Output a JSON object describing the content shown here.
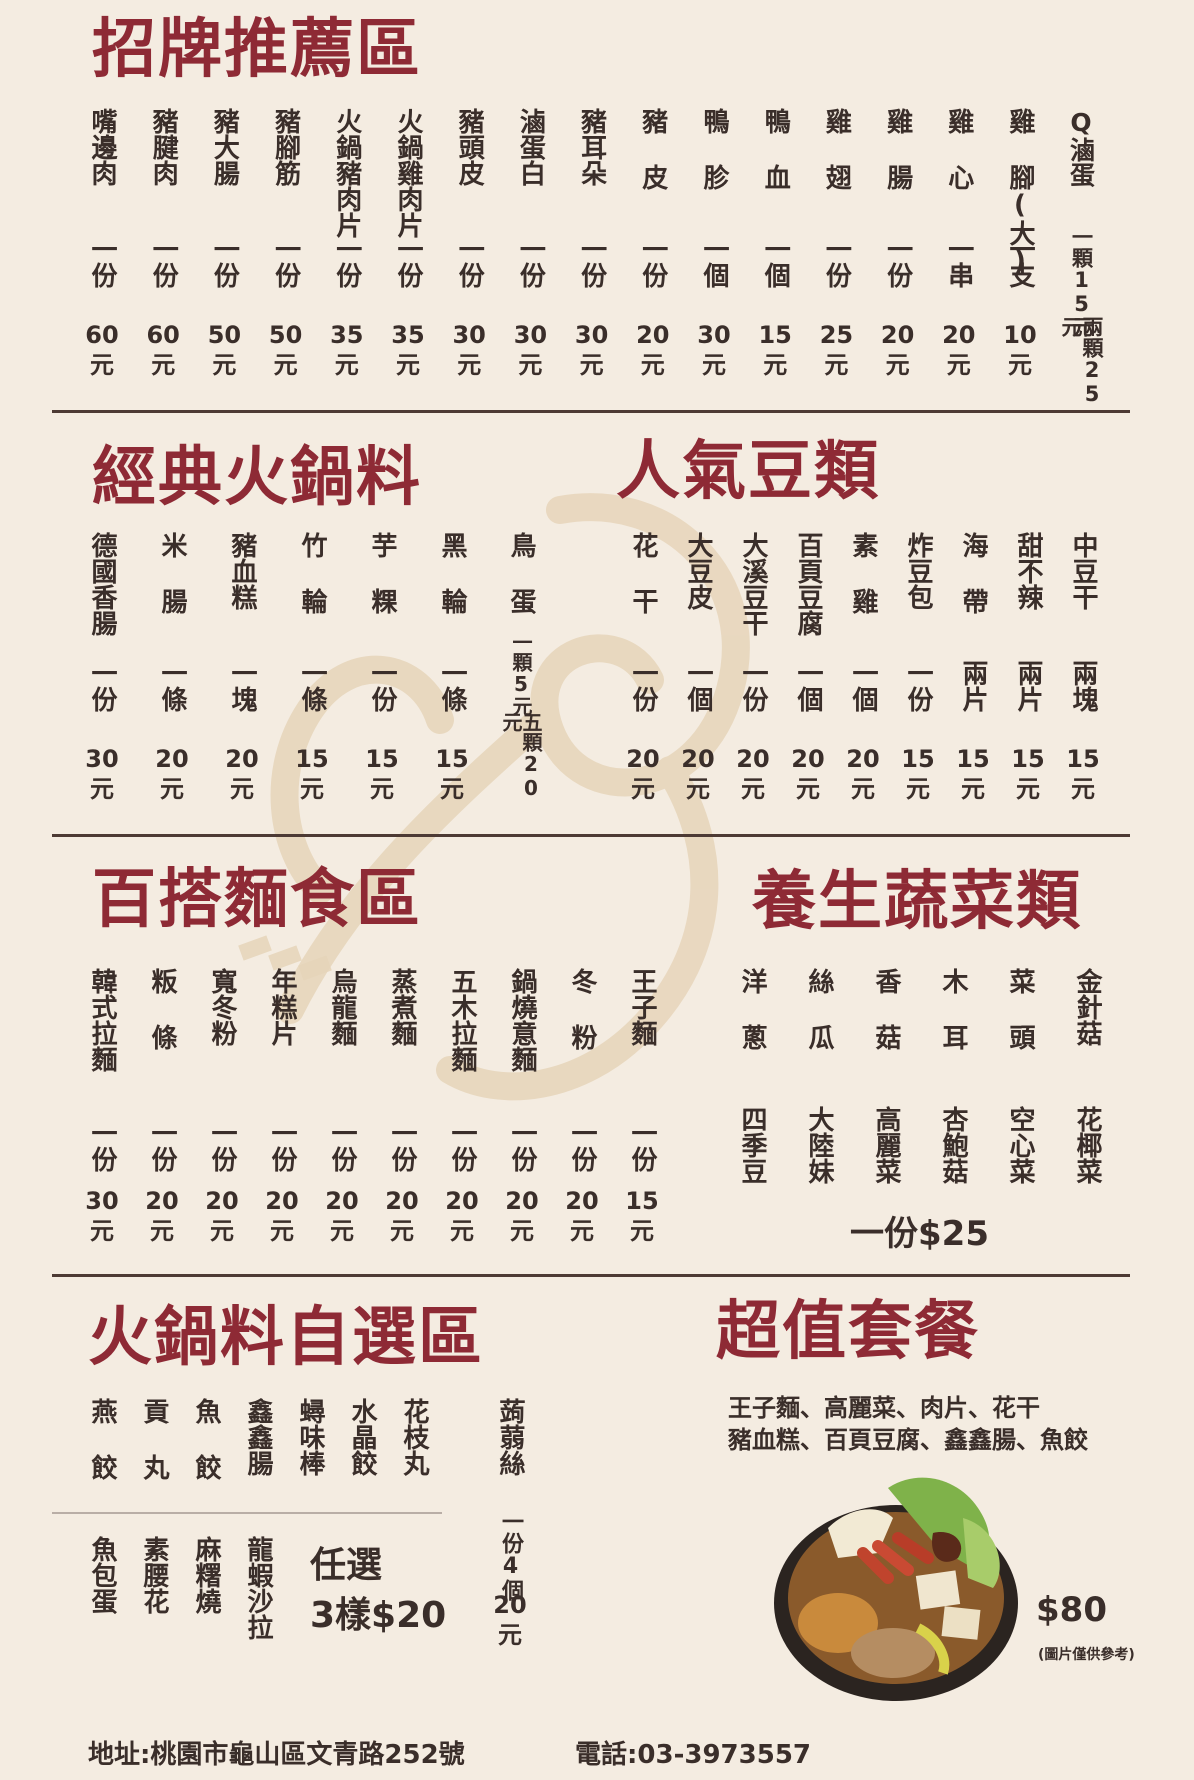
{
  "sections": {
    "signature": {
      "title": "招牌推薦區",
      "items": [
        {
          "name": "嘴邊肉",
          "unit": "一份",
          "price": [
            "60",
            "元"
          ]
        },
        {
          "name": "豬腱肉",
          "unit": "一份",
          "price": [
            "60",
            "元"
          ]
        },
        {
          "name": "豬大腸",
          "unit": "一份",
          "price": [
            "50",
            "元"
          ]
        },
        {
          "name": "豬腳筋",
          "unit": "一份",
          "price": [
            "50",
            "元"
          ]
        },
        {
          "name": "火鍋豬肉片",
          "unit": "一份",
          "price": [
            "35",
            "元"
          ]
        },
        {
          "name": "火鍋雞肉片",
          "unit": "一份",
          "price": [
            "35",
            "元"
          ]
        },
        {
          "name": "豬頭皮",
          "unit": "一份",
          "price": [
            "30",
            "元"
          ]
        },
        {
          "name": "滷蛋白",
          "unit": "一份",
          "price": [
            "30",
            "元"
          ]
        },
        {
          "name": "豬耳朵",
          "unit": "一份",
          "price": [
            "30",
            "元"
          ]
        },
        {
          "name": "豬 皮",
          "unit": "一份",
          "price": [
            "20",
            "元"
          ]
        },
        {
          "name": "鴨 胗",
          "unit": "一個",
          "price": [
            "30",
            "元"
          ]
        },
        {
          "name": "鴨 血",
          "unit": "一個",
          "price": [
            "15",
            "元"
          ]
        },
        {
          "name": "雞 翅",
          "unit": "一份",
          "price": [
            "25",
            "元"
          ]
        },
        {
          "name": "雞 腸",
          "unit": "一份",
          "price": [
            "20",
            "元"
          ]
        },
        {
          "name": "雞 心",
          "unit": "一串",
          "price": [
            "20",
            "元"
          ]
        },
        {
          "name": "雞 腳(大)",
          "unit": "一支",
          "price": [
            "10",
            "元"
          ]
        }
      ],
      "qegg": {
        "name": "Q滷蛋",
        "price1": "一顆15元",
        "price2": "兩顆25元"
      }
    },
    "classic": {
      "title": "經典火鍋料",
      "items": [
        {
          "name": "德國香腸",
          "unit": "一份",
          "price": [
            "30",
            "元"
          ]
        },
        {
          "name": "米 腸",
          "unit": "一條",
          "price": [
            "20",
            "元"
          ]
        },
        {
          "name": "豬血糕",
          "unit": "一塊",
          "price": [
            "20",
            "元"
          ]
        },
        {
          "name": "竹 輪",
          "unit": "一條",
          "price": [
            "15",
            "元"
          ]
        },
        {
          "name": "芋 粿",
          "unit": "一份",
          "price": [
            "15",
            "元"
          ]
        },
        {
          "name": "黑 輪",
          "unit": "一條",
          "price": [
            "15",
            "元"
          ]
        }
      ],
      "egg": {
        "name": "鳥 蛋",
        "price1": "一顆5元",
        "price2": "五顆20元"
      }
    },
    "beans": {
      "title": "人氣豆類",
      "items": [
        {
          "name": "花 干",
          "unit": "一份",
          "price": [
            "20",
            "元"
          ]
        },
        {
          "name": "大豆皮",
          "unit": "一個",
          "price": [
            "20",
            "元"
          ]
        },
        {
          "name": "大溪豆干",
          "unit": "一份",
          "price": [
            "20",
            "元"
          ]
        },
        {
          "name": "百頁豆腐",
          "unit": "一個",
          "price": [
            "20",
            "元"
          ]
        },
        {
          "name": "素 雞",
          "unit": "一個",
          "price": [
            "20",
            "元"
          ]
        },
        {
          "name": "炸豆包",
          "unit": "一份",
          "price": [
            "15",
            "元"
          ]
        },
        {
          "name": "海 帶",
          "unit": "兩片",
          "price": [
            "15",
            "元"
          ]
        },
        {
          "name": "甜不辣",
          "unit": "兩片",
          "price": [
            "15",
            "元"
          ]
        },
        {
          "name": "中豆干",
          "unit": "兩塊",
          "price": [
            "15",
            "元"
          ]
        }
      ]
    },
    "noodles": {
      "title": "百搭麵食區",
      "items": [
        {
          "name": "韓式拉麵",
          "unit": "一份",
          "price": [
            "30",
            "元"
          ]
        },
        {
          "name": "粄 條",
          "unit": "一份",
          "price": [
            "20",
            "元"
          ]
        },
        {
          "name": "寬冬粉",
          "unit": "一份",
          "price": [
            "20",
            "元"
          ]
        },
        {
          "name": "年糕片",
          "unit": "一份",
          "price": [
            "20",
            "元"
          ]
        },
        {
          "name": "烏龍麵",
          "unit": "一份",
          "price": [
            "20",
            "元"
          ]
        },
        {
          "name": "蒸煮麵",
          "unit": "一份",
          "price": [
            "20",
            "元"
          ]
        },
        {
          "name": "五木拉麵",
          "unit": "一份",
          "price": [
            "20",
            "元"
          ]
        },
        {
          "name": "鍋燒意麵",
          "unit": "一份",
          "price": [
            "20",
            "元"
          ]
        },
        {
          "name": "冬 粉",
          "unit": "一份",
          "price": [
            "20",
            "元"
          ]
        },
        {
          "name": "王子麵",
          "unit": "一份",
          "price": [
            "15",
            "元"
          ]
        }
      ]
    },
    "veg": {
      "title": "養生蔬菜類",
      "top": [
        "洋 蔥",
        "絲 瓜",
        "香 菇",
        "木 耳",
        "菜 頭",
        "金針菇"
      ],
      "bottom": [
        "四季豆",
        "大陸妹",
        "高麗菜",
        "杏鮑菇",
        "空心菜",
        "花椰菜"
      ],
      "price": "一份$25"
    },
    "choice": {
      "title": "火鍋料自選區",
      "row1": [
        "燕 餃",
        "貢 丸",
        "魚 餃",
        "鑫鑫腸",
        "蟳味棒",
        "水晶餃",
        "花枝丸"
      ],
      "row2": [
        "魚包蛋",
        "素腰花",
        "麻糬燒",
        "龍蝦沙拉"
      ],
      "deal_line1": "任選",
      "deal_line2": "3樣$20",
      "konjac": {
        "name": "蒟蒻絲",
        "unit": "一份4個",
        "price": [
          "20",
          "元"
        ]
      }
    },
    "combo": {
      "title": "超值套餐",
      "line1": "王子麵、高麗菜、肉片、花干",
      "line2": "豬血糕、百頁豆腐、鑫鑫腸、魚餃",
      "price": "$80",
      "note": "(圖片僅供參考)"
    }
  },
  "footer": {
    "address": "地址:桃園市龜山區文青路252號",
    "phone": "電話:03-3973557"
  },
  "colors": {
    "accent": "#8e2a35",
    "background": "#f4ece1",
    "text": "#3a2e2a",
    "watermark": "#e2cfb2"
  }
}
